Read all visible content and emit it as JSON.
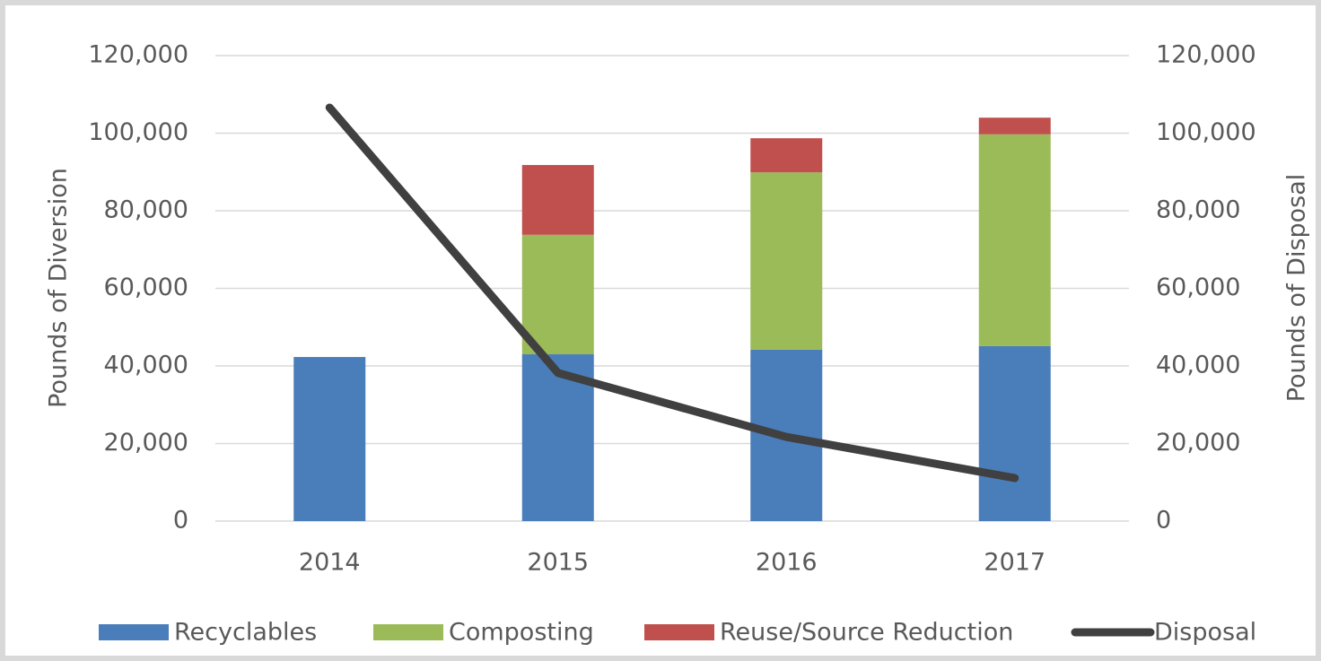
{
  "chart_data": {
    "type": "bar",
    "categories": [
      "2014",
      "2015",
      "2016",
      "2017"
    ],
    "stacked": true,
    "series": [
      {
        "name": "Recyclables",
        "color": "#4a7ebb",
        "values": [
          42300,
          43000,
          44200,
          45100
        ]
      },
      {
        "name": "Composting",
        "color": "#9bbb59",
        "values": [
          0,
          30800,
          45700,
          54600
        ]
      },
      {
        "name": "Reuse/Source Reduction",
        "color": "#c0504d",
        "values": [
          0,
          18000,
          8800,
          4300
        ]
      },
      {
        "name": "Disposal",
        "color": "#404040",
        "type": "line",
        "axis": "y2",
        "values": [
          106600,
          38200,
          21700,
          11100
        ]
      }
    ],
    "ylabel": "Pounds of Diversion",
    "y2label": "Pounds of Disposal",
    "ylim": [
      0,
      120000
    ],
    "yticks": [
      0,
      {
        "value": 20000,
        "label": "20,000"
      },
      {
        "value": 40000,
        "label": "40,000"
      },
      {
        "value": 60000,
        "label": "60,000"
      },
      {
        "value": 80000,
        "label": "80,000"
      },
      {
        "value": 100000,
        "label": "100,000"
      },
      {
        "value": 120000,
        "label": "120,000"
      }
    ],
    "y2lim": [
      0,
      120000
    ],
    "y2ticks": [
      0,
      {
        "value": 20000,
        "label": "20,000"
      },
      {
        "value": 40000,
        "label": "40,000"
      },
      {
        "value": 60000,
        "label": "60,000"
      },
      {
        "value": 80000,
        "label": "80,000"
      },
      {
        "value": 100000,
        "label": "100,000"
      },
      {
        "value": 120000,
        "label": "120,000"
      }
    ],
    "grid": true,
    "legend": "bottom"
  }
}
